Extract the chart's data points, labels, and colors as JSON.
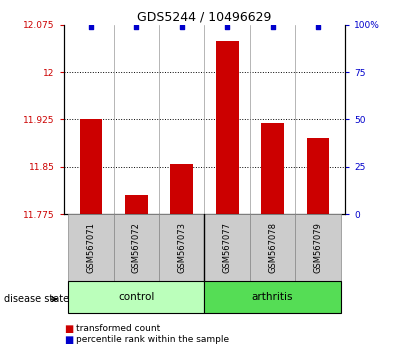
{
  "title": "GDS5244 / 10496629",
  "samples": [
    "GSM567071",
    "GSM567072",
    "GSM567073",
    "GSM567077",
    "GSM567078",
    "GSM567079"
  ],
  "red_values": [
    11.925,
    11.805,
    11.855,
    12.05,
    11.92,
    11.895
  ],
  "blue_values": [
    99,
    99,
    99,
    99,
    99,
    99
  ],
  "ylim_left": [
    11.775,
    12.075
  ],
  "ylim_right": [
    0,
    100
  ],
  "yticks_left": [
    11.775,
    11.85,
    11.925,
    12.0,
    12.075
  ],
  "yticks_right": [
    0,
    25,
    50,
    75,
    100
  ],
  "ytick_labels_left": [
    "11.775",
    "11.85",
    "11.925",
    "12",
    "12.075"
  ],
  "ytick_labels_right": [
    "0",
    "25",
    "50",
    "75",
    "100%"
  ],
  "hlines": [
    11.85,
    11.925,
    12.0
  ],
  "bar_width": 0.5,
  "red_color": "#cc0000",
  "blue_color": "#0000cc",
  "control_color": "#bbffbb",
  "arthritis_color": "#55dd55",
  "sample_box_color": "#cccccc",
  "legend_items": [
    "transformed count",
    "percentile rank within the sample"
  ],
  "group_label": "disease state",
  "figsize": [
    4.11,
    3.54
  ],
  "dpi": 100
}
